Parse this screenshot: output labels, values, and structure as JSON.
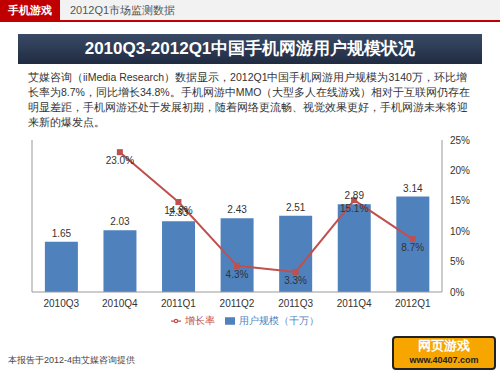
{
  "header": {
    "tag": "手机游戏",
    "subtitle": "2012Q1市场监测数据"
  },
  "description": "艾媒咨询（iiMedia Research）数据显示，2012Q1中国手机网游用户规模为3140万，环比增长率为8.7%，同比增长34.8%。手机网游中MMO（大型多人在线游戏）相对于互联网仍存在明显差距，手机网游还处于发展初期，随着网络更流畅、视觉效果更好，手机网游未来将迎来新的爆发点。",
  "footer": "本报告于2012-4由艾媒咨询提供",
  "watermark": {
    "title": "网页游戏",
    "url": "www.40407.com"
  },
  "chart_data": {
    "type": "bar",
    "title": "2010Q3-2012Q1中国手机网游用户规模状况",
    "categories": [
      "2010Q3",
      "2010Q4",
      "2011Q1",
      "2011Q2",
      "2011Q3",
      "2011Q4",
      "2012Q1"
    ],
    "series": [
      {
        "name": "用户规模（千万）",
        "type": "bar",
        "color": "#4f81bd",
        "values": [
          1.65,
          2.03,
          2.33,
          2.43,
          2.51,
          2.89,
          3.14
        ]
      },
      {
        "name": "增长率",
        "type": "line",
        "color": "#c0504d",
        "axis": "y2",
        "marker": "square",
        "values": [
          null,
          23.0,
          14.8,
          4.3,
          3.3,
          15.1,
          8.7
        ],
        "value_labels": [
          null,
          "23.0%",
          "14.8%",
          "4.3%",
          "3.3%",
          "15.1%",
          "8.7%"
        ]
      }
    ],
    "ylim": [
      0,
      5
    ],
    "y2lim": [
      0,
      25
    ],
    "y2ticks": [
      {
        "value": 0,
        "label": "0%"
      },
      {
        "value": 5,
        "label": "5%"
      },
      {
        "value": 10,
        "label": "10%"
      },
      {
        "value": 15,
        "label": "15%"
      },
      {
        "value": 20,
        "label": "20%"
      },
      {
        "value": 25,
        "label": "25%"
      }
    ],
    "data_labels": true,
    "legend": "bottom"
  }
}
